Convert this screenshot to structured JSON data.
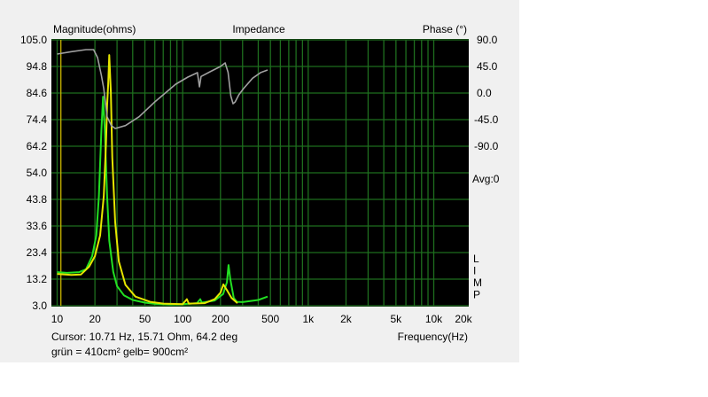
{
  "chart_data": {
    "type": "line",
    "title": "Impedance",
    "ylabel": "Magnitude(ohms)",
    "y2label": "Phase (°)",
    "xlabel": "Frequency(Hz)",
    "xscale": "log",
    "xlim": [
      9,
      19000
    ],
    "ylim": [
      3.0,
      105.0
    ],
    "y2lim": [
      -360,
      90
    ],
    "grid": true,
    "background": "#000000",
    "grid_color": "#1e6e1e",
    "x_ticks": [
      {
        "v": 10,
        "label": "10"
      },
      {
        "v": 20,
        "label": "20"
      },
      {
        "v": 50,
        "label": "50"
      },
      {
        "v": 100,
        "label": "100"
      },
      {
        "v": 200,
        "label": "200"
      },
      {
        "v": 500,
        "label": "500"
      },
      {
        "v": 1000,
        "label": "1k"
      },
      {
        "v": 2000,
        "label": "2k"
      },
      {
        "v": 5000,
        "label": "5k"
      },
      {
        "v": 10000,
        "label": "10k"
      },
      {
        "v": 20000,
        "label": "20k"
      }
    ],
    "y_ticks": [
      "3.0",
      "13.2",
      "23.4",
      "33.6",
      "43.8",
      "54.0",
      "64.2",
      "74.4",
      "84.6",
      "94.8",
      "105.0"
    ],
    "y2_ticks": [
      "90.0",
      "45.0",
      "0.0",
      "-45.0",
      "-90.0"
    ],
    "side_labels": {
      "avg": "Avg:0",
      "limp": [
        "L",
        "I",
        "M",
        "P"
      ]
    },
    "cursor": {
      "freq": 10.71,
      "color": "#c8b400"
    },
    "series": [
      {
        "key": "green",
        "color": "#22e022",
        "axis": "magnitude",
        "points": [
          [
            10,
            15.9
          ],
          [
            12,
            15.6
          ],
          [
            15,
            15.9
          ],
          [
            17,
            17
          ],
          [
            19,
            22
          ],
          [
            20.5,
            30
          ],
          [
            21.5,
            45
          ],
          [
            22.5,
            70
          ],
          [
            23.2,
            83.2
          ],
          [
            24,
            70
          ],
          [
            25,
            45
          ],
          [
            26,
            28
          ],
          [
            28,
            16
          ],
          [
            30,
            10.5
          ],
          [
            34,
            7
          ],
          [
            40,
            5.2
          ],
          [
            50,
            4.2
          ],
          [
            60,
            3.7
          ],
          [
            80,
            3.5
          ],
          [
            100,
            3.6
          ],
          [
            130,
            4
          ],
          [
            138,
            5.5
          ],
          [
            142,
            4.2
          ],
          [
            180,
            5
          ],
          [
            210,
            7.5
          ],
          [
            225,
            12
          ],
          [
            232,
            18.6
          ],
          [
            240,
            13
          ],
          [
            255,
            6
          ],
          [
            270,
            4.5
          ],
          [
            300,
            4.4
          ],
          [
            400,
            5.2
          ],
          [
            475,
            6.5
          ]
        ]
      },
      {
        "key": "yellow",
        "color": "#e6e600",
        "axis": "magnitude",
        "points": [
          [
            10,
            15.2
          ],
          [
            13,
            14.8
          ],
          [
            15.5,
            15
          ],
          [
            18,
            18
          ],
          [
            20,
            22
          ],
          [
            22,
            30
          ],
          [
            23.5,
            45
          ],
          [
            24.5,
            65
          ],
          [
            25,
            80
          ],
          [
            25.5,
            88
          ],
          [
            26,
            99.2
          ],
          [
            26.8,
            85
          ],
          [
            27.5,
            60
          ],
          [
            29,
            35
          ],
          [
            31,
            20
          ],
          [
            35,
            11
          ],
          [
            42,
            6.5
          ],
          [
            55,
            4.5
          ],
          [
            70,
            3.8
          ],
          [
            100,
            3.6
          ],
          [
            108,
            5.5
          ],
          [
            112,
            3.8
          ],
          [
            150,
            4
          ],
          [
            180,
            5.5
          ],
          [
            200,
            8
          ],
          [
            211,
            11.2
          ],
          [
            225,
            9
          ],
          [
            245,
            6
          ],
          [
            273,
            4
          ]
        ]
      },
      {
        "key": "phase",
        "color": "#a0a0a0",
        "axis": "phase",
        "points": [
          [
            10,
            66
          ],
          [
            13,
            70
          ],
          [
            17,
            73.5
          ],
          [
            19.5,
            73.5
          ],
          [
            21,
            60
          ],
          [
            22.5,
            30
          ],
          [
            23.5,
            7.5
          ],
          [
            25,
            -40
          ],
          [
            27,
            -55
          ],
          [
            29,
            -60
          ],
          [
            35,
            -55
          ],
          [
            45,
            -40
          ],
          [
            60,
            -15
          ],
          [
            88,
            15
          ],
          [
            110,
            27
          ],
          [
            131,
            34.5
          ],
          [
            136,
            10.5
          ],
          [
            140,
            28
          ],
          [
            165,
            36
          ],
          [
            200,
            45
          ],
          [
            218,
            51
          ],
          [
            230,
            35
          ],
          [
            242,
            -5
          ],
          [
            252,
            -18
          ],
          [
            262,
            -15
          ],
          [
            280,
            -3
          ],
          [
            305,
            7.5
          ],
          [
            360,
            25
          ],
          [
            420,
            35
          ],
          [
            475,
            39
          ]
        ]
      }
    ]
  },
  "footer": {
    "cursor_text": "Cursor: 10.71 Hz, 15.71 Ohm, 64.2 deg",
    "legend_text": "grün = 410cm² gelb= 900cm²"
  }
}
